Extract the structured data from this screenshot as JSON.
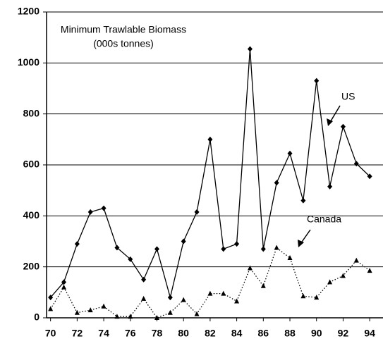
{
  "chart_data": {
    "type": "line",
    "title": "Minimum Trawlable Biomass",
    "subtitle": "(000s tonnes)",
    "x": [
      70,
      71,
      72,
      73,
      74,
      75,
      76,
      77,
      78,
      79,
      80,
      81,
      82,
      83,
      84,
      85,
      86,
      87,
      88,
      89,
      90,
      91,
      92,
      93,
      94
    ],
    "series": [
      {
        "name": "US",
        "color": "#000000",
        "style": "solid",
        "marker": "diamond",
        "values": [
          80,
          140,
          290,
          415,
          430,
          275,
          230,
          150,
          270,
          80,
          300,
          415,
          700,
          270,
          290,
          1055,
          270,
          530,
          645,
          460,
          930,
          515,
          750,
          605,
          555
        ]
      },
      {
        "name": "Canada",
        "color": "#000000",
        "style": "dotted",
        "marker": "triangle",
        "values": [
          35,
          120,
          20,
          30,
          45,
          5,
          5,
          75,
          0,
          20,
          70,
          15,
          95,
          95,
          65,
          195,
          125,
          275,
          235,
          85,
          80,
          140,
          165,
          225,
          185
        ]
      }
    ],
    "xlim": [
      69.7,
      95
    ],
    "xticks": [
      70,
      72,
      74,
      76,
      78,
      80,
      82,
      84,
      86,
      88,
      90,
      92,
      94
    ],
    "ylim": [
      0,
      1200
    ],
    "yticks": [
      0,
      200,
      400,
      600,
      800,
      1000,
      1200
    ],
    "grid": true
  }
}
